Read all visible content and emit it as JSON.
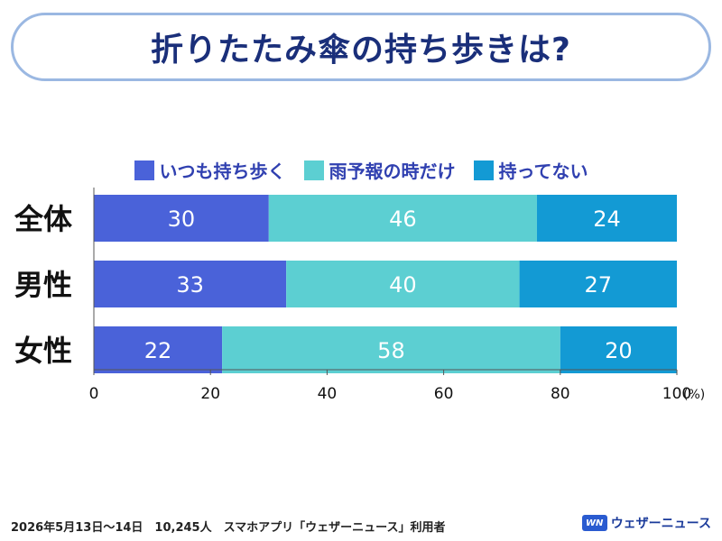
{
  "title": "折りたたみ傘の持ち歩きは?",
  "footer_note": "2026年5月13日〜14日　10,245人　スマホアプリ「ウェザーニュース」利用者",
  "brand": {
    "logo_text": "WN",
    "name": "ウェザーニュース"
  },
  "chart_data": {
    "type": "bar",
    "orientation": "horizontal-stacked",
    "categories": [
      "全体",
      "男性",
      "女性"
    ],
    "series": [
      {
        "name": "いつも持ち歩く",
        "values": [
          30,
          33,
          22
        ],
        "color": "#4a62d9"
      },
      {
        "name": "雨予報の時だけ",
        "values": [
          46,
          40,
          58
        ],
        "color": "#5ccfd2"
      },
      {
        "name": "持ってない",
        "values": [
          24,
          27,
          20
        ],
        "color": "#139ad4"
      }
    ],
    "xlim": [
      0,
      100
    ],
    "xticks": [
      "0",
      "20",
      "40",
      "60",
      "80",
      "100"
    ],
    "x_unit": "(%)",
    "legend": "top-center"
  }
}
